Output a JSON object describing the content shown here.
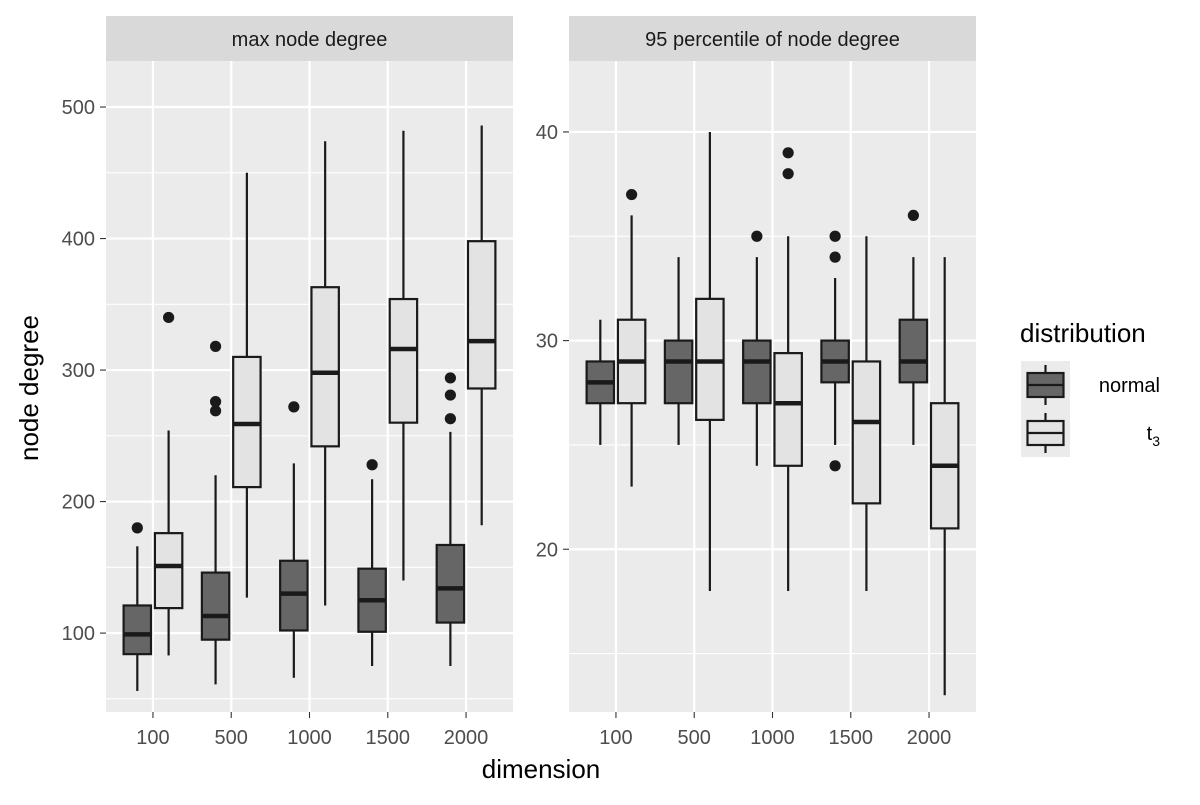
{
  "chart_data": {
    "type": "boxplot",
    "xlabel": "dimension",
    "ylabel": "node degree",
    "categories": [
      "100",
      "500",
      "1000",
      "1500",
      "2000"
    ],
    "legend": {
      "title": "distribution",
      "placement": "right",
      "entries": [
        {
          "key": "normal",
          "label": "normal",
          "fill": "#666666"
        },
        {
          "key": "t3",
          "label": "t",
          "subscript": "3",
          "fill": "#e3e3e3"
        }
      ]
    },
    "colors": {
      "panel_bg": "#ebebeb",
      "strip_bg": "#d9d9d9",
      "line": "#1a1a1a",
      "normal_fill": "#666666",
      "t3_fill": "#e3e3e3"
    },
    "panels": [
      {
        "strip": "max node degree",
        "ylim": [
          40,
          535
        ],
        "yticks": [
          100,
          200,
          300,
          400,
          500
        ],
        "yticklabels": [
          "100",
          "200",
          "300",
          "400",
          "500"
        ],
        "yminor": [
          50,
          150,
          250,
          350,
          450
        ],
        "series": [
          {
            "key": "normal",
            "boxes": [
              {
                "min": 56,
                "q1": 84,
                "median": 99,
                "q3": 121,
                "max": 166,
                "outliers": [
                  180
                ]
              },
              {
                "min": 61,
                "q1": 95,
                "median": 113,
                "q3": 146,
                "max": 220,
                "outliers": [
                  269,
                  276,
                  318
                ]
              },
              {
                "min": 66,
                "q1": 102,
                "median": 130,
                "q3": 155,
                "max": 229,
                "outliers": [
                  272
                ]
              },
              {
                "min": 75,
                "q1": 101,
                "median": 125,
                "q3": 149,
                "max": 217,
                "outliers": [
                  228
                ]
              },
              {
                "min": 75,
                "q1": 108,
                "median": 134,
                "q3": 167,
                "max": 253,
                "outliers": [
                  263,
                  281,
                  294
                ]
              }
            ]
          },
          {
            "key": "t3",
            "boxes": [
              {
                "min": 83,
                "q1": 119,
                "median": 151,
                "q3": 176,
                "max": 254,
                "outliers": [
                  340
                ]
              },
              {
                "min": 127,
                "q1": 211,
                "median": 259,
                "q3": 310,
                "max": 450,
                "outliers": []
              },
              {
                "min": 121,
                "q1": 242,
                "median": 298,
                "q3": 363,
                "max": 474,
                "outliers": []
              },
              {
                "min": 140,
                "q1": 260,
                "median": 316,
                "q3": 354,
                "max": 482,
                "outliers": []
              },
              {
                "min": 182,
                "q1": 286,
                "median": 322,
                "q3": 398,
                "max": 486,
                "outliers": []
              }
            ]
          }
        ]
      },
      {
        "strip": "95 percentile of node degree",
        "ylim": [
          12.2,
          43.4
        ],
        "yticks": [
          20,
          30,
          40
        ],
        "yticklabels": [
          "20",
          "30",
          "40"
        ],
        "yminor": [
          15,
          25,
          35
        ],
        "series": [
          {
            "key": "normal",
            "boxes": [
              {
                "min": 25,
                "q1": 27,
                "median": 28,
                "q3": 29,
                "max": 31,
                "outliers": []
              },
              {
                "min": 25,
                "q1": 27,
                "median": 29,
                "q3": 30,
                "max": 34,
                "outliers": []
              },
              {
                "min": 24,
                "q1": 27,
                "median": 29,
                "q3": 30,
                "max": 34,
                "outliers": [
                  35
                ]
              },
              {
                "min": 25,
                "q1": 28,
                "median": 29,
                "q3": 30,
                "max": 33,
                "outliers": [
                  24,
                  34,
                  35
                ]
              },
              {
                "min": 25,
                "q1": 28,
                "median": 29,
                "q3": 31,
                "max": 34,
                "outliers": [
                  36
                ]
              }
            ]
          },
          {
            "key": "t3",
            "boxes": [
              {
                "min": 23,
                "q1": 27,
                "median": 29,
                "q3": 31,
                "max": 36,
                "outliers": [
                  37
                ]
              },
              {
                "min": 18,
                "q1": 26.2,
                "median": 29,
                "q3": 32,
                "max": 40,
                "outliers": []
              },
              {
                "min": 18,
                "q1": 24,
                "median": 27,
                "q3": 29.4,
                "max": 35,
                "outliers": [
                  38,
                  39
                ]
              },
              {
                "min": 18,
                "q1": 22.2,
                "median": 26.1,
                "q3": 29,
                "max": 35,
                "outliers": []
              },
              {
                "min": 13,
                "q1": 21,
                "median": 24,
                "q3": 27,
                "max": 34,
                "outliers": []
              }
            ]
          }
        ]
      }
    ]
  }
}
